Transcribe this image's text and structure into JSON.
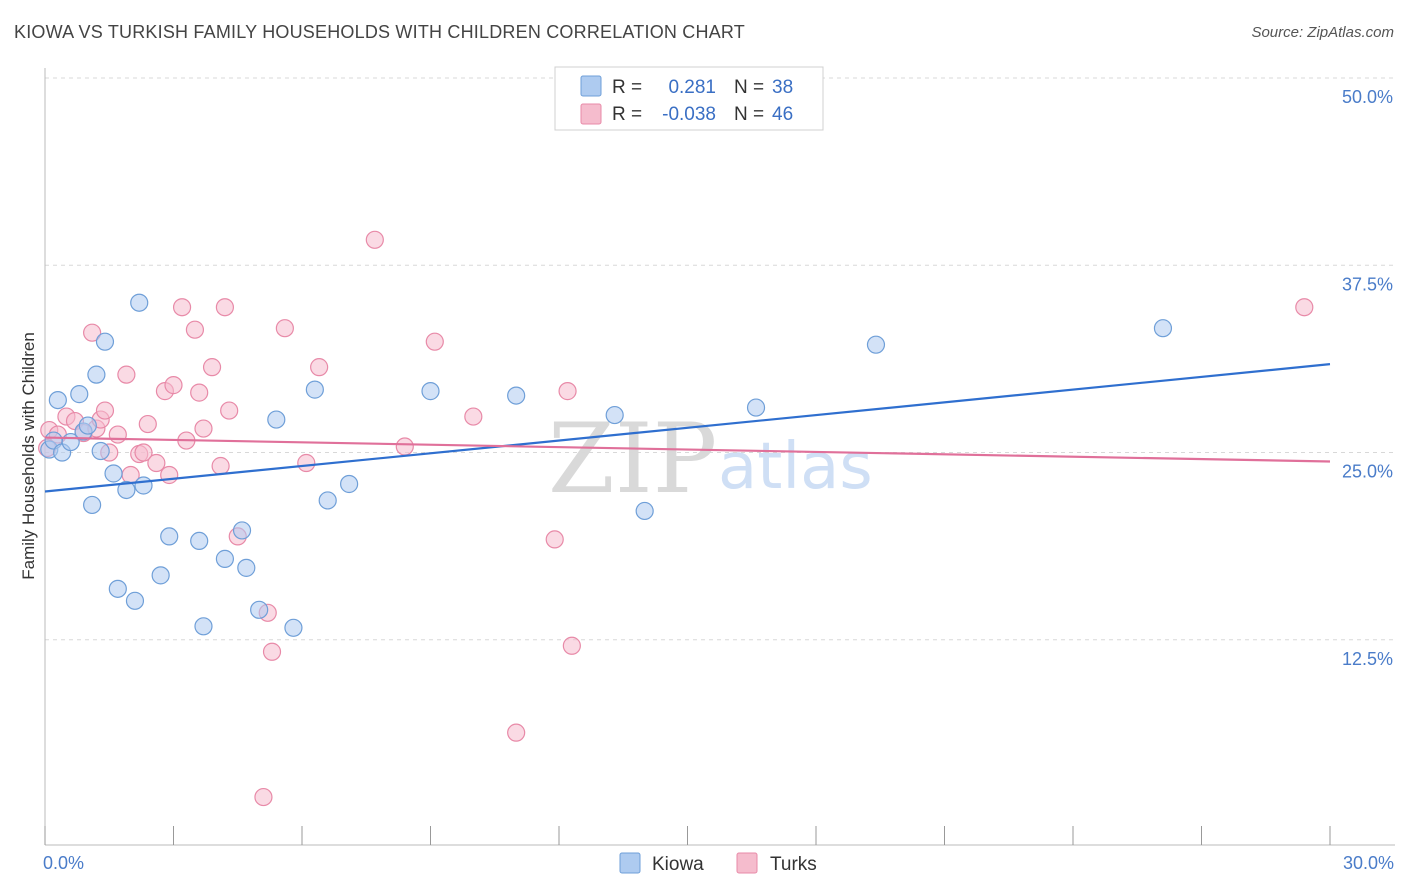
{
  "title": "KIOWA VS TURKISH FAMILY HOUSEHOLDS WITH CHILDREN CORRELATION CHART",
  "source": "Source: ZipAtlas.com",
  "watermark": {
    "zip": "ZIP",
    "atlas": "atlas"
  },
  "colors": {
    "kiowa_fill": "#aecbf0",
    "kiowa_stroke": "#6f9fd8",
    "kiowa_line": "#2f6fcf",
    "turks_fill": "#f5bccd",
    "turks_stroke": "#e88aa8",
    "turks_line": "#e0709a",
    "grid": "#d8d8d8",
    "axis_tick": "#4a7cc9"
  },
  "legend_top": {
    "rows": [
      {
        "r_label": "R = ",
        "r_value": "0.281",
        "n_label": "N = ",
        "n_value": "38"
      },
      {
        "r_label": "R = ",
        "r_value": "-0.038",
        "n_label": "N = ",
        "n_value": "46"
      }
    ]
  },
  "legend_bottom": {
    "series1": "Kiowa",
    "series2": "Turks"
  },
  "chart_data": {
    "type": "scatter",
    "title": "KIOWA VS TURKISH FAMILY HOUSEHOLDS WITH CHILDREN CORRELATION CHART",
    "xlabel": "",
    "ylabel": "Family Households with Children",
    "xlim": [
      0,
      30
    ],
    "ylim": [
      0,
      50
    ],
    "x_tick_labels": [
      "0.0%",
      "30.0%"
    ],
    "y_ticks": [
      12.5,
      25.0,
      37.5,
      50.0
    ],
    "y_tick_labels": [
      "12.5%",
      "25.0%",
      "37.5%",
      "50.0%"
    ],
    "series": [
      {
        "name": "Kiowa",
        "R": 0.281,
        "N": 38,
        "trend": {
          "x": [
            0,
            30
          ],
          "y": [
            23.6,
            32.1
          ]
        },
        "points": [
          [
            0.1,
            26.4
          ],
          [
            0.2,
            27.0
          ],
          [
            0.3,
            29.7
          ],
          [
            0.4,
            26.2
          ],
          [
            0.6,
            26.9
          ],
          [
            0.8,
            30.1
          ],
          [
            0.9,
            27.6
          ],
          [
            1.0,
            28.0
          ],
          [
            1.1,
            22.7
          ],
          [
            1.2,
            31.4
          ],
          [
            1.3,
            26.3
          ],
          [
            1.4,
            33.6
          ],
          [
            1.6,
            24.8
          ],
          [
            1.7,
            17.1
          ],
          [
            1.9,
            23.7
          ],
          [
            2.1,
            16.3
          ],
          [
            2.2,
            36.2
          ],
          [
            2.3,
            24.0
          ],
          [
            2.7,
            18.0
          ],
          [
            2.9,
            20.6
          ],
          [
            3.6,
            20.3
          ],
          [
            3.7,
            14.6
          ],
          [
            4.2,
            19.1
          ],
          [
            4.6,
            21.0
          ],
          [
            4.7,
            18.5
          ],
          [
            5.0,
            15.7
          ],
          [
            5.4,
            28.4
          ],
          [
            5.8,
            14.5
          ],
          [
            6.3,
            30.4
          ],
          [
            6.6,
            23.0
          ],
          [
            7.1,
            24.1
          ],
          [
            9.0,
            30.3
          ],
          [
            11.0,
            30.0
          ],
          [
            13.3,
            28.7
          ],
          [
            14.0,
            22.3
          ],
          [
            16.6,
            29.2
          ],
          [
            19.4,
            33.4
          ],
          [
            26.1,
            34.5
          ]
        ]
      },
      {
        "name": "Turks",
        "R": -0.038,
        "N": 46,
        "trend": {
          "x": [
            0,
            30
          ],
          "y": [
            27.2,
            25.6
          ]
        },
        "points": [
          [
            0.1,
            27.7
          ],
          [
            0.3,
            27.4
          ],
          [
            0.5,
            28.6
          ],
          [
            0.7,
            28.3
          ],
          [
            0.9,
            27.5
          ],
          [
            1.1,
            34.2
          ],
          [
            1.2,
            27.8
          ],
          [
            1.3,
            28.4
          ],
          [
            1.4,
            29.0
          ],
          [
            1.5,
            26.2
          ],
          [
            1.7,
            27.4
          ],
          [
            1.9,
            31.4
          ],
          [
            2.0,
            24.7
          ],
          [
            2.2,
            26.1
          ],
          [
            2.3,
            26.2
          ],
          [
            2.4,
            28.1
          ],
          [
            2.6,
            25.5
          ],
          [
            2.8,
            30.3
          ],
          [
            2.9,
            24.7
          ],
          [
            3.0,
            30.7
          ],
          [
            3.2,
            35.9
          ],
          [
            3.3,
            27.0
          ],
          [
            3.5,
            34.4
          ],
          [
            3.6,
            30.2
          ],
          [
            3.7,
            27.8
          ],
          [
            3.9,
            31.9
          ],
          [
            4.1,
            25.3
          ],
          [
            4.2,
            35.9
          ],
          [
            4.3,
            29.0
          ],
          [
            4.5,
            20.6
          ],
          [
            5.1,
            3.2
          ],
          [
            5.2,
            15.5
          ],
          [
            5.3,
            12.9
          ],
          [
            5.6,
            34.5
          ],
          [
            6.1,
            25.5
          ],
          [
            6.4,
            31.9
          ],
          [
            7.7,
            40.4
          ],
          [
            8.4,
            26.6
          ],
          [
            9.1,
            33.6
          ],
          [
            10.0,
            28.6
          ],
          [
            11.0,
            7.5
          ],
          [
            11.9,
            20.4
          ],
          [
            12.2,
            30.3
          ],
          [
            12.3,
            13.3
          ],
          [
            29.4,
            35.9
          ],
          [
            0.05,
            26.5
          ]
        ]
      }
    ]
  }
}
